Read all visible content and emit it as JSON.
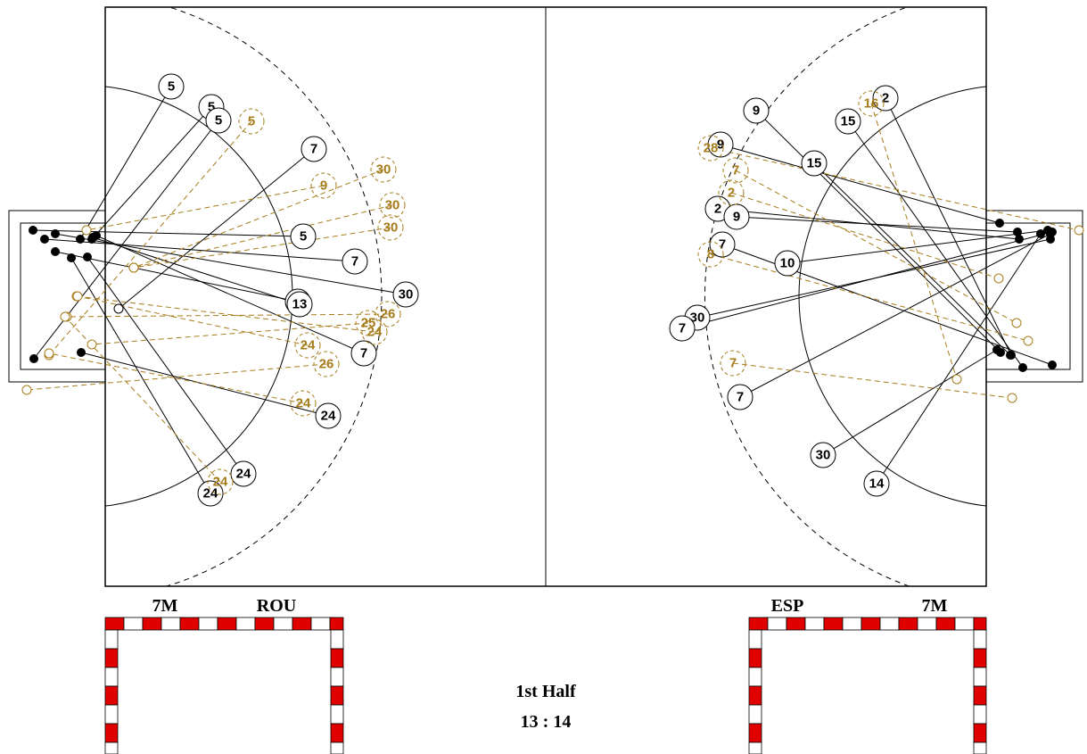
{
  "shots": [
    {
      "player": "5",
      "result": "goal"
    },
    {
      "player": "5",
      "result": "goal"
    },
    {
      "player": "5",
      "result": "goal"
    },
    {
      "player": "7",
      "result": "saved"
    },
    {
      "player": "5",
      "result": "goal"
    },
    {
      "player": "7",
      "result": "goal"
    },
    {
      "player": "30",
      "result": "goal"
    },
    {
      "player": "13",
      "result": "goal"
    },
    {
      "player": "13",
      "result": "goal"
    },
    {
      "player": "7",
      "result": "goal"
    },
    {
      "player": "24",
      "result": "goal"
    },
    {
      "player": "24",
      "result": "goal"
    },
    {
      "player": "24",
      "result": "goal"
    },
    {
      "player": "5",
      "result": "missed"
    },
    {
      "player": "9",
      "result": "missed"
    },
    {
      "player": "30",
      "result": "missed"
    },
    {
      "player": "30",
      "result": "missed"
    },
    {
      "player": "30",
      "result": "missed"
    },
    {
      "player": "26",
      "result": "missed"
    },
    {
      "player": "25",
      "result": "missed"
    },
    {
      "player": "24",
      "result": "missed"
    },
    {
      "player": "24",
      "result": "missed"
    },
    {
      "player": "26",
      "result": "missed"
    },
    {
      "player": "24",
      "result": "missed"
    },
    {
      "player": "24",
      "result": "missed"
    },
    {
      "player": "2",
      "result": "goal"
    },
    {
      "player": "15",
      "result": "goal"
    },
    {
      "player": "9",
      "result": "goal"
    },
    {
      "player": "9",
      "result": "goal"
    },
    {
      "player": "15",
      "result": "goal"
    },
    {
      "player": "2",
      "result": "goal"
    },
    {
      "player": "9",
      "result": "goal"
    },
    {
      "player": "7",
      "result": "goal"
    },
    {
      "player": "10",
      "result": "goal"
    },
    {
      "player": "30",
      "result": "goal"
    },
    {
      "player": "7",
      "result": "goal"
    },
    {
      "player": "7",
      "result": "goal"
    },
    {
      "player": "30",
      "result": "goal"
    },
    {
      "player": "14",
      "result": "goal"
    },
    {
      "player": "16",
      "result": "missed"
    },
    {
      "player": "28",
      "result": "missed"
    },
    {
      "player": "7",
      "result": "missed"
    },
    {
      "player": "2",
      "result": "missed"
    },
    {
      "player": "8",
      "result": "missed"
    },
    {
      "player": "7",
      "result": "missed"
    }
  ],
  "goals": [
    {
      "left_label": "7M",
      "right_label": "ROU"
    },
    {
      "left_label": "ESP",
      "right_label": "7M"
    }
  ],
  "period": "1st Half",
  "score": "13 : 14"
}
